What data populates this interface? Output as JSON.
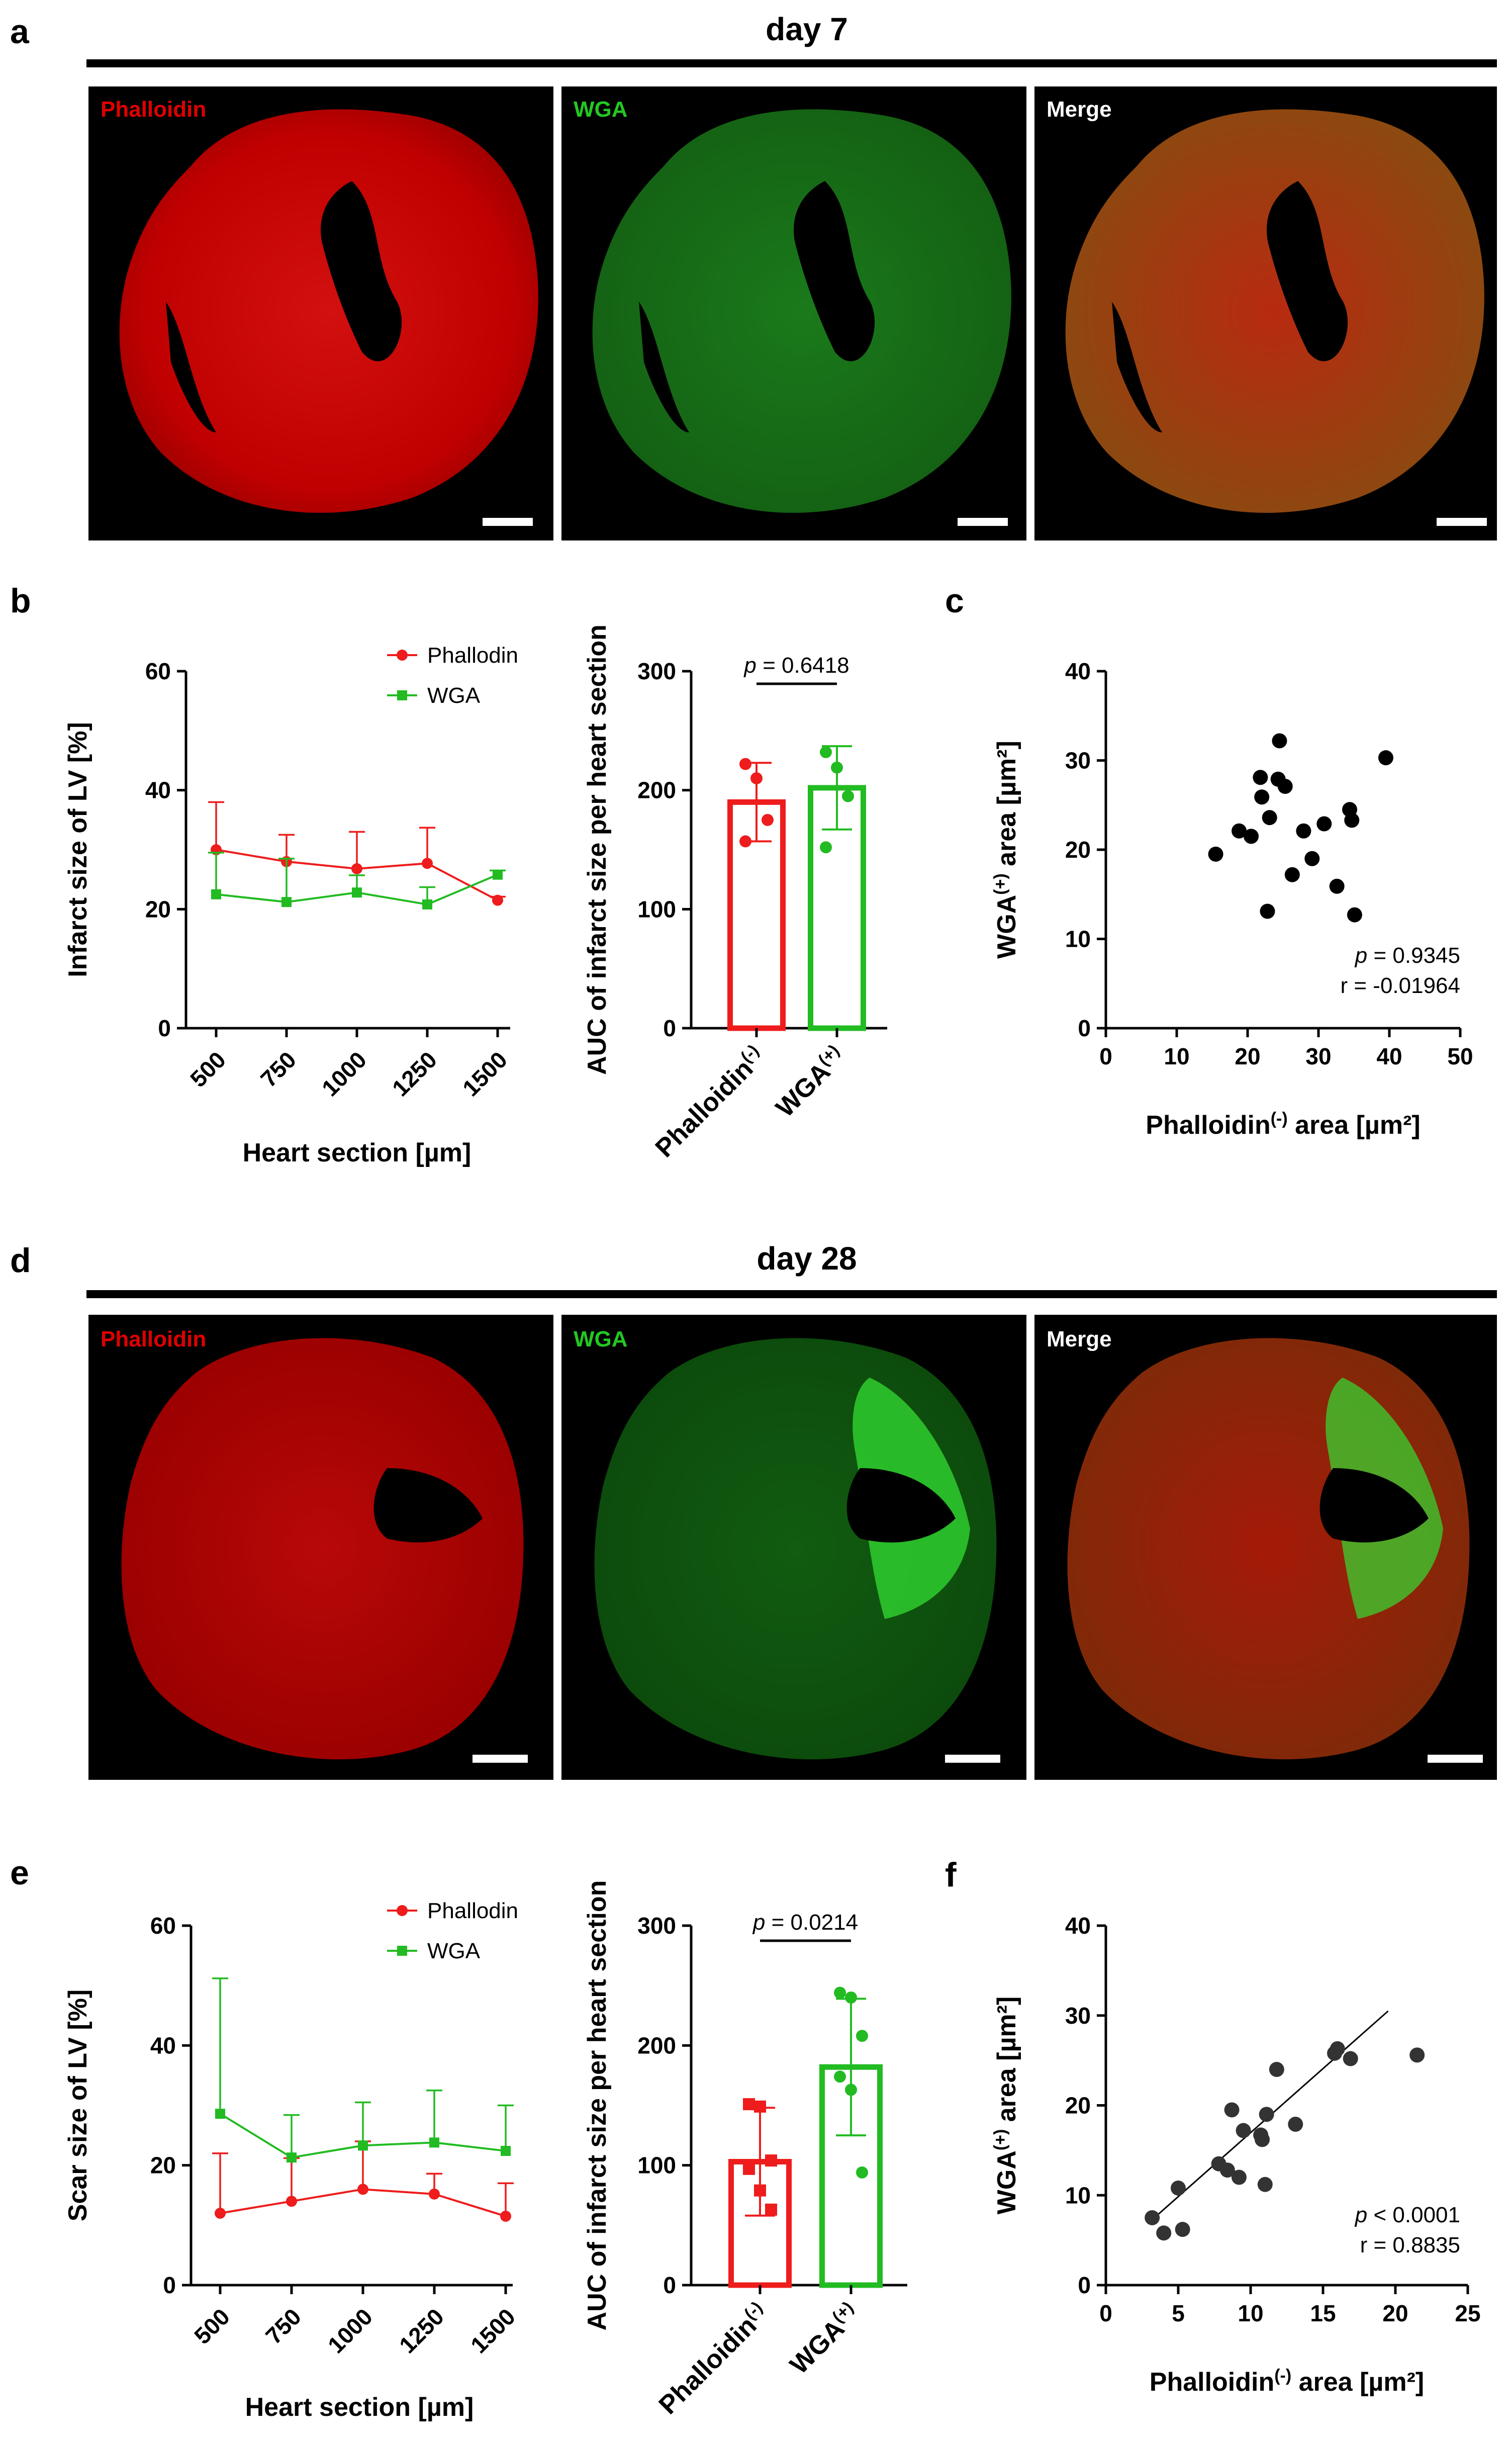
{
  "panel_labels": {
    "a": "a",
    "b": "b",
    "c": "c",
    "d": "d",
    "e": "e",
    "f": "f"
  },
  "day7": {
    "title": "day 7",
    "channels": [
      {
        "label": "Phalloidin",
        "color": "#e00000"
      },
      {
        "label": "WGA",
        "color": "#22c922"
      },
      {
        "label": "Merge",
        "color": "#ffffff"
      }
    ]
  },
  "day28": {
    "title": "day 28",
    "channels": [
      {
        "label": "Phalloidin",
        "color": "#e00000"
      },
      {
        "label": "WGA",
        "color": "#22c922"
      },
      {
        "label": "Merge",
        "color": "#ffffff"
      }
    ]
  },
  "colors": {
    "red": "#ee1c1c",
    "green": "#22bb22",
    "black": "#000000"
  },
  "chart_data": [
    {
      "id": "b_line",
      "type": "line",
      "xlabel": "Heart section [µm]",
      "ylabel": "Infarct size of LV [%]",
      "categories": [
        "500",
        "750",
        "1000",
        "1250",
        "1500"
      ],
      "ylim": [
        0,
        60
      ],
      "yticks": [
        "0",
        "20",
        "40",
        "60"
      ],
      "series": [
        {
          "name": "Phallodin",
          "marker": "circle",
          "values": [
            30,
            28,
            26.8,
            27.7,
            21.5
          ],
          "err": [
            8,
            4.5,
            6.2,
            6,
            0.6
          ]
        },
        {
          "name": "WGA",
          "marker": "square",
          "values": [
            22.5,
            21.2,
            22.8,
            20.8,
            25.8
          ],
          "err": [
            7,
            7.3,
            2.9,
            2.9,
            0.7
          ]
        }
      ]
    },
    {
      "id": "b_bar",
      "type": "bar",
      "ylabel": "AUC of infarct size per heart section",
      "categories": [
        "Phalloidin",
        "WGA"
      ],
      "cat_sup": [
        "(-)",
        "(+)"
      ],
      "values": [
        190,
        202
      ],
      "sd": [
        33,
        35
      ],
      "points": [
        [
          222,
          210,
          175,
          157
        ],
        [
          232,
          219,
          195,
          152
        ]
      ],
      "ylim": [
        0,
        300
      ],
      "yticks": [
        "0",
        "100",
        "200",
        "300"
      ],
      "p_label": "p",
      "p_text": " = 0.6418"
    },
    {
      "id": "c_scatter",
      "type": "scatter",
      "xlabel_main": "Phalloidin",
      "xlabel_sup": "(-)",
      "xlabel_tail": " area [µm²]",
      "ylabel_main": "WGA",
      "ylabel_sup": "(+)",
      "ylabel_tail": " area [µm²]",
      "xlim": [
        0,
        50
      ],
      "ylim": [
        0,
        40
      ],
      "xticks": [
        "0",
        "10",
        "20",
        "30",
        "40",
        "50"
      ],
      "yticks": [
        "0",
        "10",
        "20",
        "30",
        "40"
      ],
      "points": [
        [
          15.5,
          19.5
        ],
        [
          18.8,
          22.1
        ],
        [
          20.5,
          21.5
        ],
        [
          21.8,
          28.1
        ],
        [
          22,
          25.9
        ],
        [
          22.8,
          13.1
        ],
        [
          23.1,
          23.6
        ],
        [
          24.3,
          27.9
        ],
        [
          24.5,
          32.2
        ],
        [
          25.3,
          27.1
        ],
        [
          26.3,
          17.2
        ],
        [
          27.9,
          22.1
        ],
        [
          29.1,
          19
        ],
        [
          30.8,
          22.9
        ],
        [
          32.6,
          15.9
        ],
        [
          34.4,
          24.5
        ],
        [
          34.7,
          23.3
        ],
        [
          35.1,
          12.7
        ],
        [
          39.5,
          30.3
        ]
      ],
      "p_label": "p",
      "p_text": " = 0.9345",
      "r_text": "r = -0.01964"
    },
    {
      "id": "e_line",
      "type": "line",
      "xlabel": "Heart section [µm]",
      "ylabel": "Scar size of LV [%]",
      "categories": [
        "500",
        "750",
        "1000",
        "1250",
        "1500"
      ],
      "ylim": [
        0,
        60
      ],
      "yticks": [
        "0",
        "20",
        "40",
        "60"
      ],
      "series": [
        {
          "name": "Phallodin",
          "marker": "circle",
          "values": [
            12,
            14,
            16,
            15.2,
            11.5
          ],
          "err": [
            10,
            7.2,
            8,
            3.4,
            5.5
          ]
        },
        {
          "name": "WGA",
          "marker": "square",
          "values": [
            28.6,
            21.3,
            23.3,
            23.8,
            22.4
          ],
          "err": [
            22.6,
            7.1,
            7.2,
            8.7,
            7.6
          ]
        }
      ]
    },
    {
      "id": "e_bar",
      "type": "bar",
      "ylabel": "AUC of infarct size per heart section",
      "categories": [
        "Phalloidin",
        "WGA"
      ],
      "cat_sup": [
        "(-)",
        "(+)"
      ],
      "values": [
        103,
        182
      ],
      "sd": [
        45,
        57
      ],
      "points": [
        [
          151,
          149,
          104,
          97,
          79,
          63
        ],
        [
          244,
          240,
          208,
          174,
          163,
          94
        ]
      ],
      "ylim": [
        0,
        300
      ],
      "yticks": [
        "0",
        "100",
        "200",
        "300"
      ],
      "p_label": "p",
      "p_text": " = 0.0214"
    },
    {
      "id": "f_scatter",
      "type": "scatter",
      "xlabel_main": "Phalloidin",
      "xlabel_sup": "(-)",
      "xlabel_tail": " area [µm²]",
      "ylabel_main": "WGA",
      "ylabel_sup": "(+)",
      "ylabel_tail": " area [µm²]",
      "xlim": [
        0,
        25
      ],
      "ylim": [
        0,
        40
      ],
      "xticks": [
        "0",
        "5",
        "10",
        "15",
        "20",
        "25"
      ],
      "yticks": [
        "0",
        "10",
        "20",
        "30",
        "40"
      ],
      "points": [
        [
          3.2,
          7.5
        ],
        [
          4,
          5.8
        ],
        [
          5,
          10.8
        ],
        [
          5.3,
          6.2
        ],
        [
          7.8,
          13.5
        ],
        [
          8.4,
          12.8
        ],
        [
          8.7,
          19.5
        ],
        [
          9.2,
          12
        ],
        [
          9.5,
          17.2
        ],
        [
          10.7,
          16.7
        ],
        [
          10.8,
          16.2
        ],
        [
          11,
          11.2
        ],
        [
          11.1,
          19
        ],
        [
          11.8,
          24
        ],
        [
          13.1,
          17.9
        ],
        [
          15.8,
          25.8
        ],
        [
          16,
          26.3
        ],
        [
          16.9,
          25.2
        ],
        [
          21.5,
          25.6
        ]
      ],
      "fit": [
        [
          3,
          7
        ],
        [
          19.5,
          30.5
        ]
      ],
      "p_label": "p",
      "p_text": " < 0.0001",
      "r_text": "r = 0.8835"
    }
  ]
}
